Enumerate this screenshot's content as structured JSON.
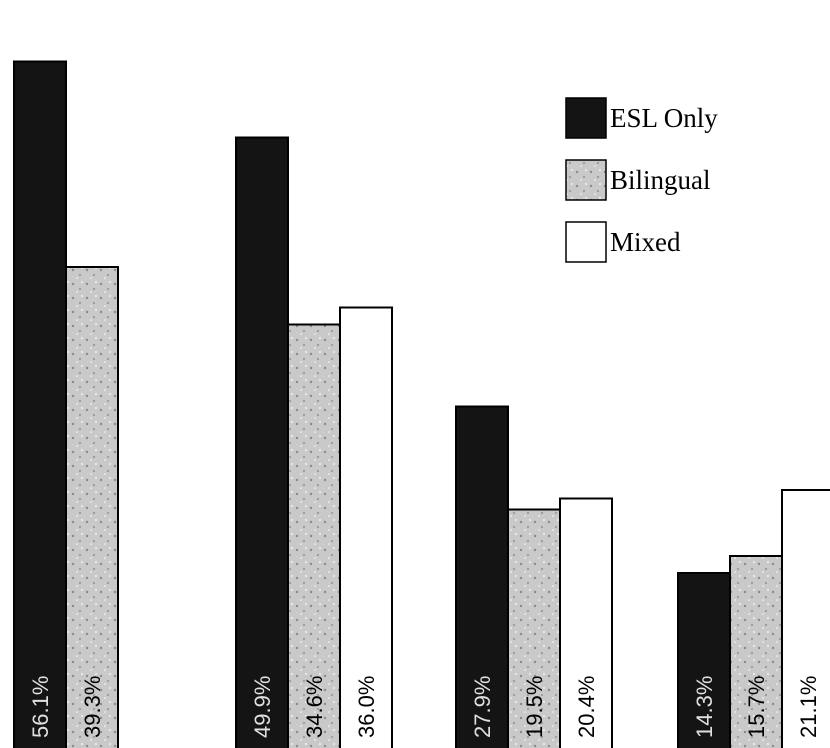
{
  "chart_data": {
    "type": "bar",
    "categories": [
      "",
      "",
      "",
      ""
    ],
    "series": [
      {
        "name": "ESL Only",
        "values": [
          56.1,
          49.9,
          27.9,
          14.3
        ],
        "labels": [
          "56.1%",
          "49.9%",
          "27.9%",
          "14.3%"
        ]
      },
      {
        "name": "Bilingual",
        "values": [
          39.3,
          34.6,
          19.5,
          15.7
        ],
        "labels": [
          "39.3%",
          "34.6%",
          "19.5%",
          "15.7%"
        ]
      },
      {
        "name": "Mixed",
        "values": [
          null,
          36.0,
          20.4,
          21.1
        ],
        "labels": [
          "",
          "36.0%",
          "20.4%",
          "21.1%"
        ]
      }
    ],
    "title": "",
    "xlabel": "",
    "ylabel": "",
    "ylim": [
      0,
      60
    ],
    "grid": false,
    "legend_position": "top-right"
  },
  "colors": {
    "esl_only": "#141414",
    "bilingual": "#c9c9c9",
    "mixed": "#ffffff",
    "outline": "#000000",
    "label_on_dark": "#e0e0e0",
    "label_on_light": "#000000"
  }
}
